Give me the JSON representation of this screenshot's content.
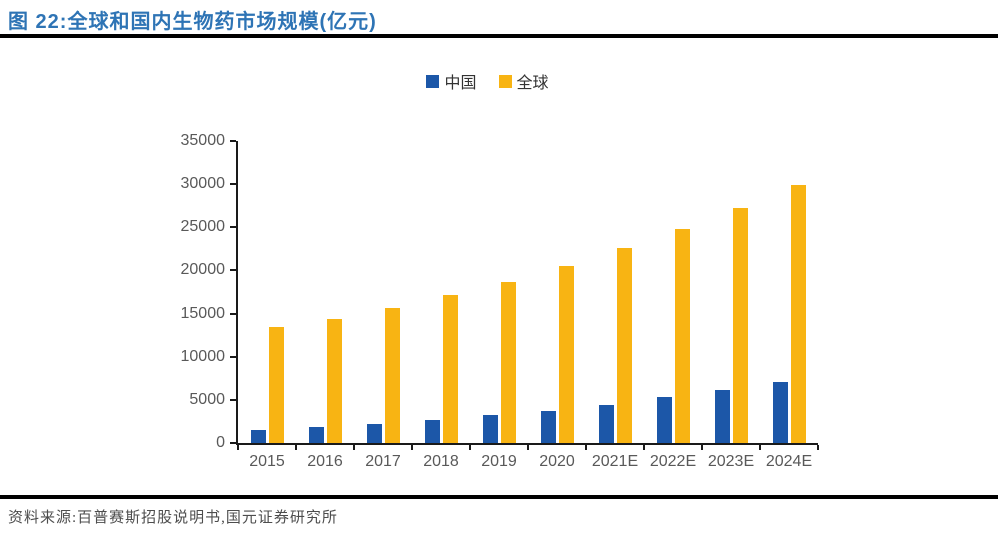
{
  "header": {
    "title": "图 22:全球和国内生物药市场规模(亿元)"
  },
  "footer": {
    "source": "资料来源:百普赛斯招股说明书,国元证券研究所"
  },
  "colors": {
    "title_blue": "#2E74B5",
    "china_bar": "#1C57A8",
    "global_bar": "#F8B413",
    "axis": "#1a1a1a",
    "tick_label": "#595959",
    "rule": "#000000"
  },
  "chart_data": {
    "type": "bar",
    "title": "全球和国内生物药市场规模(亿元)",
    "categories": [
      "2015",
      "2016",
      "2017",
      "2018",
      "2019",
      "2020",
      "2021E",
      "2022E",
      "2023E",
      "2024E"
    ],
    "series": [
      {
        "name": "中国",
        "color": "#1C57A8",
        "values": [
          1450,
          1850,
          2250,
          2650,
          3200,
          3700,
          4400,
          5300,
          6100,
          7100
        ]
      },
      {
        "name": "全球",
        "color": "#F8B413",
        "values": [
          13400,
          14400,
          15600,
          17150,
          18700,
          20500,
          22550,
          24850,
          27200,
          29850
        ]
      }
    ],
    "xlabel": "",
    "ylabel": "",
    "ylim": [
      0,
      35000
    ],
    "yticks": [
      0,
      5000,
      10000,
      15000,
      20000,
      25000,
      30000,
      35000
    ],
    "grid": false,
    "legend_position": "top-center"
  }
}
